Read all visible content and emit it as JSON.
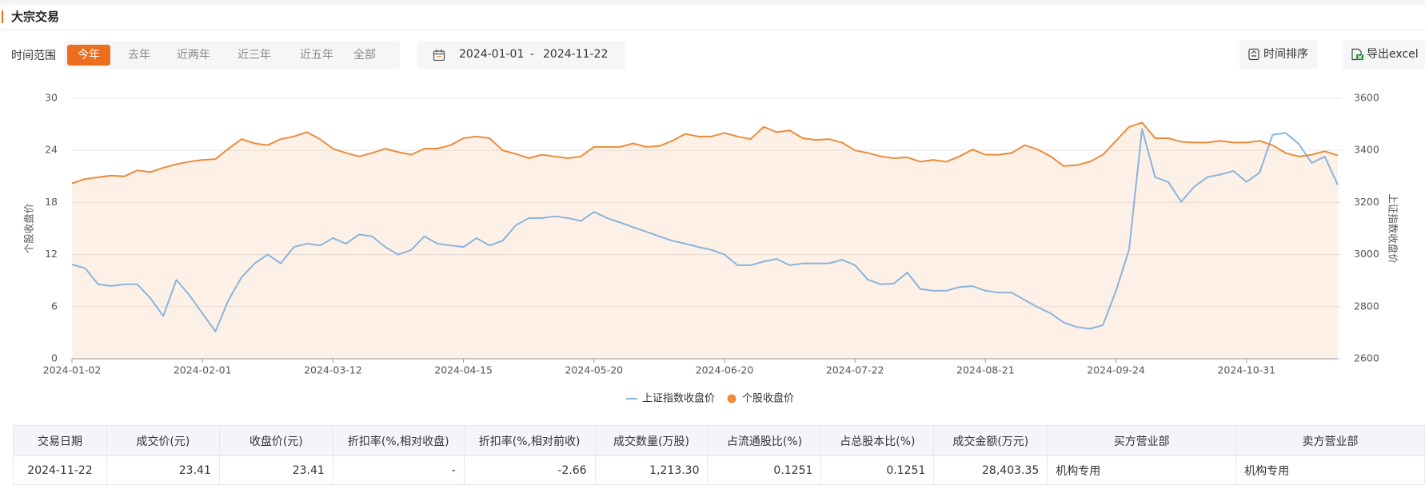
{
  "header": {
    "title": "大宗交易"
  },
  "filter": {
    "label": "时间范围",
    "options": [
      "今年",
      "去年",
      "近两年",
      "近三年",
      "近五年",
      "全部"
    ],
    "active": 0
  },
  "date_range": {
    "start": "2024-01-01",
    "separator": "-",
    "end": "2024-11-22"
  },
  "buttons": [
    "时间排序",
    "导出excel"
  ],
  "chart_data": {
    "type": "line",
    "categories": [
      "2024-01-02",
      null,
      null,
      null,
      null,
      null,
      null,
      null,
      null,
      null,
      "2024-02-01",
      null,
      null,
      null,
      null,
      null,
      null,
      null,
      null,
      null,
      "2024-03-12",
      null,
      null,
      null,
      null,
      null,
      null,
      null,
      null,
      null,
      "2024-04-15",
      null,
      null,
      null,
      null,
      null,
      null,
      null,
      null,
      null,
      "2024-05-20",
      null,
      null,
      null,
      null,
      null,
      null,
      null,
      null,
      null,
      "2024-06-20",
      null,
      null,
      null,
      null,
      null,
      null,
      null,
      null,
      null,
      "2024-07-22",
      null,
      null,
      null,
      null,
      null,
      null,
      null,
      null,
      null,
      "2024-08-21",
      null,
      null,
      null,
      null,
      null,
      null,
      null,
      null,
      null,
      "2024-09-24",
      null,
      null,
      null,
      null,
      null,
      null,
      null,
      null,
      null,
      "2024-10-31",
      null,
      null,
      null,
      null,
      null,
      null,
      null
    ],
    "series": [
      {
        "name": "上证指数收盘价",
        "color": "#8ab4dd",
        "axis": "y2",
        "symbol": "line",
        "values": [
          2962,
          2948,
          2886,
          2879,
          2886,
          2886,
          2833,
          2764,
          2903,
          2844,
          2774,
          2705,
          2826,
          2913,
          2966,
          3000,
          2966,
          3029,
          3042,
          3035,
          3063,
          3042,
          3077,
          3070,
          3029,
          3000,
          3018,
          3070,
          3042,
          3035,
          3029,
          3063,
          3035,
          3053,
          3112,
          3140,
          3140,
          3147,
          3140,
          3129,
          3164,
          3140,
          3123,
          3105,
          3088,
          3070,
          3053,
          3042,
          3029,
          3018,
          3000,
          2959,
          2959,
          2973,
          2983,
          2959,
          2966,
          2966,
          2966,
          2980,
          2959,
          2903,
          2886,
          2889,
          2931,
          2868,
          2861,
          2861,
          2875,
          2879,
          2861,
          2854,
          2854,
          2826,
          2798,
          2774,
          2739,
          2722,
          2715,
          2729,
          2861,
          3018,
          3482,
          3297,
          3279,
          3203,
          3261,
          3297,
          3307,
          3321,
          3279,
          3314,
          3460,
          3467,
          3425,
          3352,
          3376,
          3267
        ]
      },
      {
        "name": "个股收盘价",
        "color": "#ed8b3a",
        "area": true,
        "symbol": "circle",
        "values": [
          20.2,
          20.7,
          20.9,
          21.1,
          21.0,
          21.7,
          21.5,
          22.0,
          22.4,
          22.7,
          22.9,
          23.0,
          24.2,
          25.3,
          24.8,
          24.6,
          25.3,
          25.6,
          26.1,
          25.3,
          24.2,
          23.7,
          23.3,
          23.7,
          24.2,
          23.8,
          23.5,
          24.2,
          24.2,
          24.6,
          25.4,
          25.6,
          25.4,
          24.0,
          23.6,
          23.1,
          23.5,
          23.3,
          23.1,
          23.3,
          24.4,
          24.4,
          24.4,
          24.8,
          24.4,
          24.5,
          25.1,
          25.9,
          25.6,
          25.6,
          26.0,
          25.6,
          25.3,
          26.7,
          26.1,
          26.3,
          25.4,
          25.2,
          25.3,
          24.9,
          24.0,
          23.7,
          23.3,
          23.1,
          23.2,
          22.7,
          22.9,
          22.7,
          23.3,
          24.1,
          23.5,
          23.5,
          23.7,
          24.6,
          24.1,
          23.3,
          22.2,
          22.3,
          22.7,
          23.5,
          25.1,
          26.7,
          27.2,
          25.4,
          25.4,
          25.0,
          24.9,
          24.9,
          25.1,
          24.9,
          24.9,
          25.1,
          24.6,
          23.7,
          23.3,
          23.5,
          23.9,
          23.41
        ]
      }
    ],
    "ylabel": "个股收盘价",
    "y2label": "上证指数收盘价",
    "ylim": [
      0,
      30
    ],
    "yticks": [
      0,
      6,
      12,
      18,
      24,
      30
    ],
    "y2lim": [
      2600,
      3600
    ],
    "y2ticks": [
      2600,
      2800,
      3000,
      3200,
      3400,
      3600
    ],
    "grid": true,
    "legend": "bottom"
  },
  "table": {
    "columns": [
      "交易日期",
      "成交价(元)",
      "收盘价(元)",
      "折扣率(%,相对收盘)",
      "折扣率(%,相对前收)",
      "成交数量(万股)",
      "占流通股比(%)",
      "占总股本比(%)",
      "成交金额(万元)",
      "买方营业部",
      "卖方营业部"
    ],
    "rows": [
      [
        "2024-11-22",
        "23.41",
        "23.41",
        "-",
        "-2.66",
        "1,213.30",
        "0.1251",
        "0.1251",
        "28,403.35",
        "机构专用",
        "机构专用"
      ]
    ]
  }
}
